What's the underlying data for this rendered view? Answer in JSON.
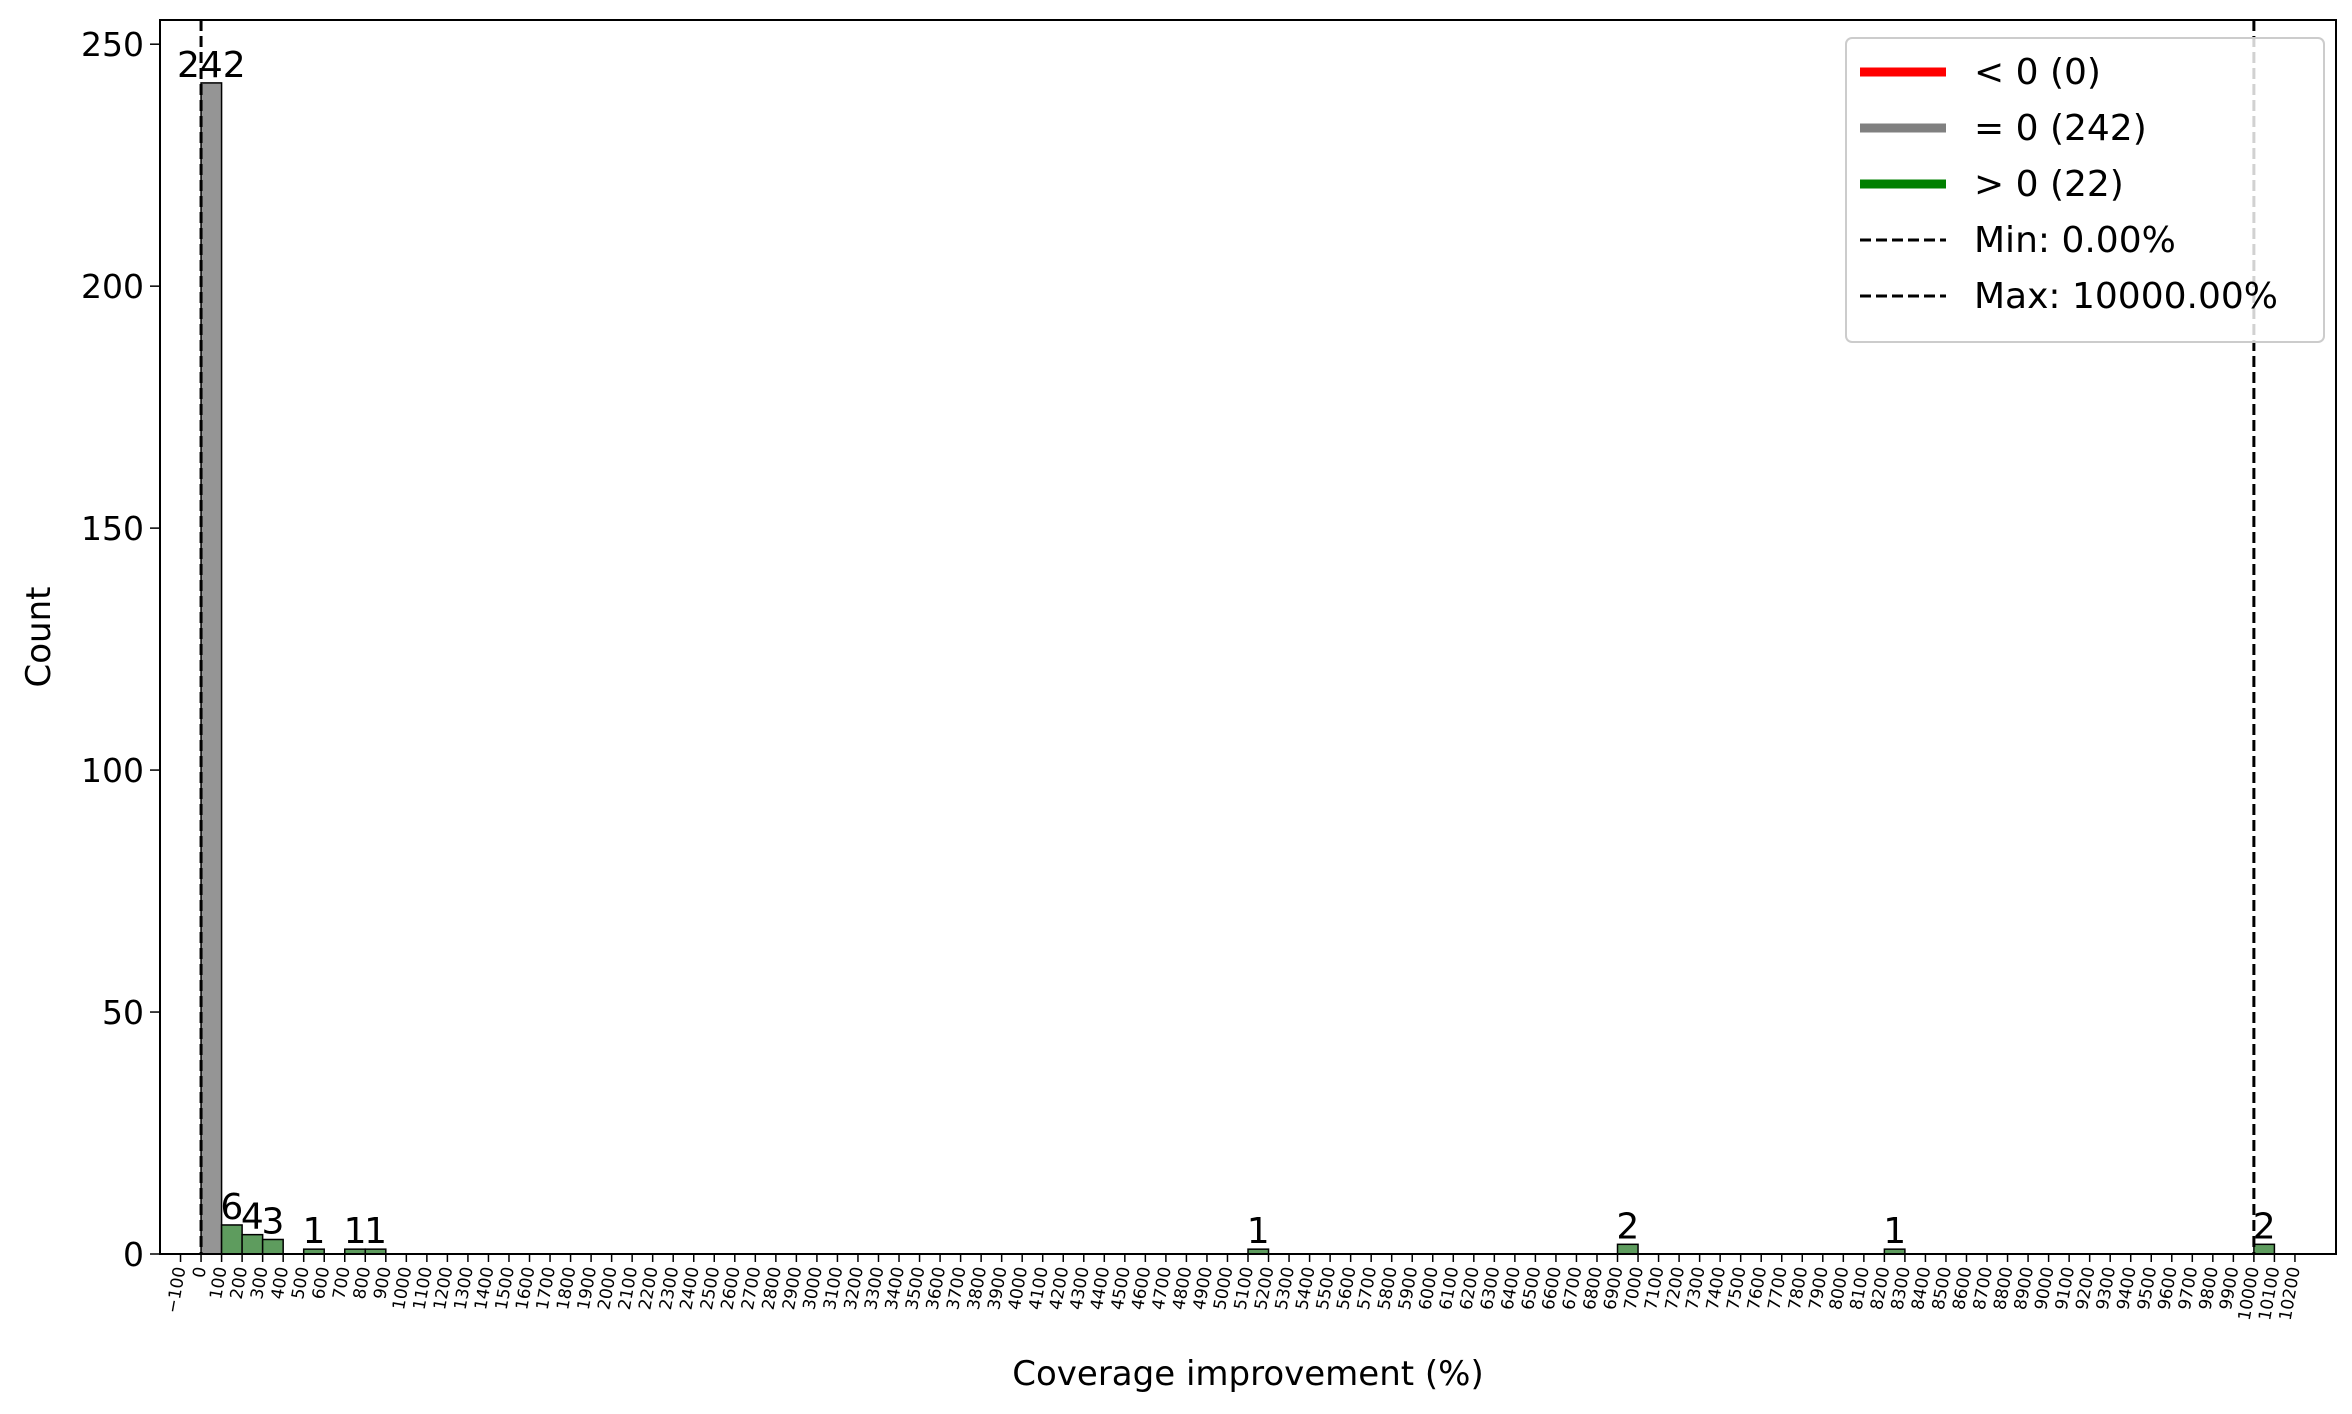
{
  "chart_data": {
    "type": "bar",
    "xlabel": "Coverage improvement (%)",
    "ylabel": "Count",
    "xlim": [
      -200,
      10400
    ],
    "ylim": [
      0,
      255
    ],
    "grid": false,
    "legend_position": "top-right",
    "x_ticks": [
      -100,
      0,
      100,
      200,
      300,
      400,
      500,
      600,
      700,
      800,
      900,
      1000,
      1100,
      1200,
      1300,
      1400,
      1500,
      1600,
      1700,
      1800,
      1900,
      2000,
      2100,
      2200,
      2300,
      2400,
      2500,
      2600,
      2700,
      2800,
      2900,
      3000,
      3100,
      3200,
      3300,
      3400,
      3500,
      3600,
      3700,
      3800,
      3900,
      4000,
      4100,
      4200,
      4300,
      4400,
      4500,
      4600,
      4700,
      4800,
      4900,
      5000,
      5100,
      5200,
      5300,
      5400,
      5500,
      5600,
      5700,
      5800,
      5900,
      6000,
      6100,
      6200,
      6300,
      6400,
      6500,
      6600,
      6700,
      6800,
      6900,
      7000,
      7100,
      7200,
      7300,
      7400,
      7500,
      7600,
      7700,
      7800,
      7900,
      8000,
      8100,
      8200,
      8300,
      8400,
      8500,
      8600,
      8700,
      8800,
      8900,
      9000,
      9100,
      9200,
      9300,
      9400,
      9500,
      9600,
      9700,
      9800,
      9900,
      10000,
      10100,
      10200
    ],
    "y_ticks": [
      0,
      50,
      100,
      150,
      200,
      250
    ],
    "bars": [
      {
        "x0": 0,
        "x1": 100,
        "count": 242,
        "group": "zero",
        "label": "242"
      },
      {
        "x0": 100,
        "x1": 200,
        "count": 6,
        "group": "positive",
        "label": "6"
      },
      {
        "x0": 200,
        "x1": 300,
        "count": 4,
        "group": "positive",
        "label": "4"
      },
      {
        "x0": 300,
        "x1": 400,
        "count": 3,
        "group": "positive",
        "label": "3"
      },
      {
        "x0": 500,
        "x1": 600,
        "count": 1,
        "group": "positive",
        "label": "1"
      },
      {
        "x0": 700,
        "x1": 800,
        "count": 1,
        "group": "positive",
        "label": "1"
      },
      {
        "x0": 800,
        "x1": 900,
        "count": 1,
        "group": "positive",
        "label": "1"
      },
      {
        "x0": 5100,
        "x1": 5200,
        "count": 1,
        "group": "positive",
        "label": "1"
      },
      {
        "x0": 6900,
        "x1": 7000,
        "count": 2,
        "group": "positive",
        "label": "2"
      },
      {
        "x0": 8200,
        "x1": 8300,
        "count": 1,
        "group": "positive",
        "label": "1"
      },
      {
        "x0": 10000,
        "x1": 10100,
        "count": 2,
        "group": "positive",
        "label": "2"
      }
    ],
    "vlines": [
      {
        "x": 0,
        "label": "Min: 0.00%"
      },
      {
        "x": 10000,
        "label": "Max: 10000.00%"
      }
    ],
    "legend": [
      {
        "kind": "line",
        "text": "< 0 (0)",
        "color": "#ff0000"
      },
      {
        "kind": "line",
        "text": "= 0 (242)",
        "color": "#808080"
      },
      {
        "kind": "line",
        "text": "> 0 (22)",
        "color": "#008000"
      },
      {
        "kind": "dashed",
        "text": "Min: 0.00%",
        "color": "#000000"
      },
      {
        "kind": "dashed",
        "text": "Max: 10000.00%",
        "color": "#000000"
      }
    ],
    "colors": {
      "zero_fill": "#959595",
      "positive_fill": "#5e9c5e",
      "edge": "#000000"
    }
  }
}
